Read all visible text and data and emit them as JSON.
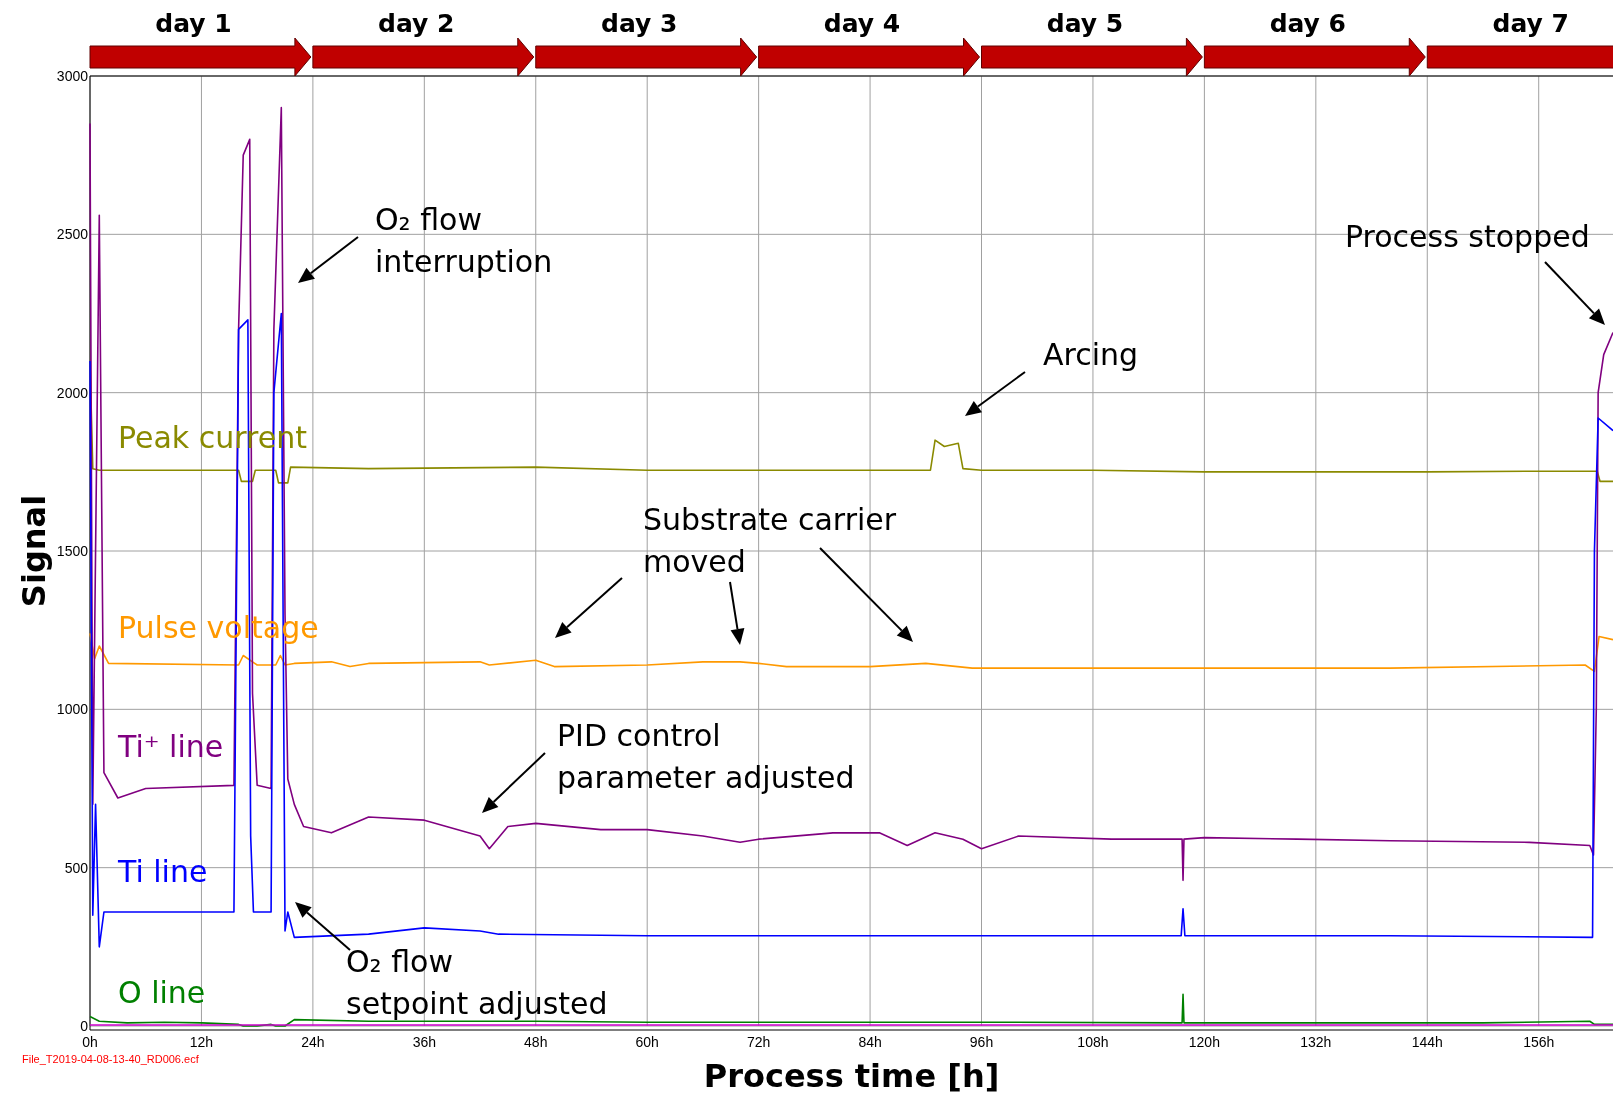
{
  "chart_data": {
    "type": "line",
    "xlabel": "Process time [h]",
    "ylabel": "Signal",
    "xlim": [
      0,
      164
    ],
    "ylim": [
      0,
      3000
    ],
    "xticks": [
      {
        "value": 0,
        "label": "0h"
      },
      {
        "value": 12,
        "label": "12h"
      },
      {
        "value": 24,
        "label": "24h"
      },
      {
        "value": 36,
        "label": "36h"
      },
      {
        "value": 48,
        "label": "48h"
      },
      {
        "value": 60,
        "label": "60h"
      },
      {
        "value": 72,
        "label": "72h"
      },
      {
        "value": 84,
        "label": "84h"
      },
      {
        "value": 96,
        "label": "96h"
      },
      {
        "value": 108,
        "label": "108h"
      },
      {
        "value": 120,
        "label": "120h"
      },
      {
        "value": 132,
        "label": "132h"
      },
      {
        "value": 144,
        "label": "144h"
      },
      {
        "value": 156,
        "label": "156h"
      }
    ],
    "yticks": [
      0,
      500,
      1000,
      1500,
      2000,
      2500,
      3000
    ],
    "grid": true,
    "series": [
      {
        "name": "Peak current",
        "color": "#8a8a00",
        "x": [
          0,
          0.3,
          1,
          16,
          16.3,
          17.5,
          17.8,
          20,
          20.3,
          21.3,
          21.6,
          30,
          48,
          60,
          72,
          85,
          90.5,
          91,
          92,
          93.5,
          94,
          96,
          108,
          120,
          132,
          144,
          156,
          162.3,
          162.6,
          164
        ],
        "values": [
          2100,
          1760,
          1755,
          1755,
          1720,
          1720,
          1755,
          1755,
          1715,
          1715,
          1765,
          1760,
          1765,
          1755,
          1755,
          1755,
          1755,
          1850,
          1830,
          1840,
          1760,
          1755,
          1755,
          1750,
          1750,
          1750,
          1752,
          1752,
          1720,
          1720
        ]
      },
      {
        "name": "Pulse voltage",
        "color": "#ff9900",
        "x": [
          0,
          0.5,
          1,
          2,
          16,
          16.5,
          17.5,
          18,
          20,
          20.5,
          21,
          22,
          26,
          28,
          30,
          42,
          43,
          48,
          50,
          60,
          66,
          70,
          72,
          75,
          84,
          90,
          95,
          100,
          120,
          140,
          161,
          162,
          162.5,
          164
        ],
        "values": [
          1240,
          1160,
          1200,
          1145,
          1140,
          1170,
          1150,
          1140,
          1140,
          1170,
          1140,
          1145,
          1150,
          1135,
          1145,
          1150,
          1140,
          1155,
          1135,
          1140,
          1150,
          1150,
          1145,
          1135,
          1135,
          1145,
          1130,
          1130,
          1130,
          1130,
          1140,
          1120,
          1230,
          1220
        ]
      },
      {
        "name": "Ti⁺ line",
        "color": "#800080",
        "x": [
          0,
          0.3,
          0.6,
          1,
          1.5,
          3,
          6,
          15.5,
          16,
          16.5,
          17.2,
          17.5,
          18,
          19.5,
          19.8,
          20.6,
          21,
          21.3,
          22,
          23,
          26,
          30,
          36,
          42,
          43,
          45,
          48,
          55,
          60,
          66,
          70,
          72,
          80,
          85,
          88,
          91,
          94,
          96,
          100,
          110,
          117.6,
          117.7,
          117.8,
          120,
          130,
          140,
          155,
          161.5,
          161.9,
          162.2,
          162.4,
          163,
          164
        ],
        "values": [
          2850,
          700,
          1500,
          2560,
          800,
          720,
          750,
          760,
          2200,
          2750,
          2800,
          1050,
          760,
          750,
          2200,
          2900,
          1300,
          780,
          700,
          630,
          610,
          660,
          650,
          600,
          560,
          630,
          640,
          620,
          620,
          600,
          580,
          590,
          610,
          610,
          570,
          610,
          590,
          560,
          600,
          590,
          590,
          460,
          590,
          595,
          590,
          585,
          580,
          570,
          540,
          1000,
          2000,
          2120,
          2190
        ]
      },
      {
        "name": "Ti line",
        "color": "#0000ff",
        "x": [
          0,
          0.3,
          0.6,
          1,
          1.5,
          8,
          15.5,
          16,
          17,
          17.3,
          17.6,
          19.5,
          19.8,
          20.6,
          21,
          21.3,
          22,
          30,
          36,
          42,
          44,
          60,
          80,
          96,
          117.5,
          117.7,
          117.9,
          140,
          161.8,
          162,
          162.4,
          164
        ],
        "values": [
          2100,
          350,
          700,
          250,
          360,
          360,
          360,
          2200,
          2230,
          600,
          360,
          360,
          2000,
          2250,
          300,
          360,
          280,
          290,
          310,
          300,
          290,
          285,
          285,
          285,
          285,
          370,
          285,
          285,
          280,
          1500,
          1920,
          1880
        ]
      },
      {
        "name": "O line",
        "color": "#008000",
        "x": [
          0,
          1,
          4,
          8,
          12,
          16,
          16.5,
          18,
          19.5,
          20,
          21,
          22,
          30,
          48,
          60,
          72,
          96,
          117.6,
          117.7,
          117.8,
          130,
          150,
          161.5,
          162,
          164
        ],
        "values": [
          30,
          15,
          10,
          12,
          10,
          5,
          0,
          0,
          5,
          0,
          0,
          20,
          15,
          15,
          12,
          12,
          12,
          10,
          100,
          10,
          10,
          10,
          15,
          5,
          5
        ]
      },
      {
        "color": "#cc00cc",
        "x": [
          0,
          164
        ],
        "values": [
          3,
          3
        ]
      }
    ],
    "annotations": [
      "day 1",
      "day 2",
      "day 3",
      "day 4",
      "day 5",
      "day 6",
      "day 7",
      "O₂ flow interruption",
      "Arcing",
      "Substrate carrier moved",
      "PID control parameter adjusted",
      "O₂ flow setpoint adjusted",
      "Process stopped",
      "File_T2019-04-08-13-40_RD006.ecf"
    ]
  }
}
